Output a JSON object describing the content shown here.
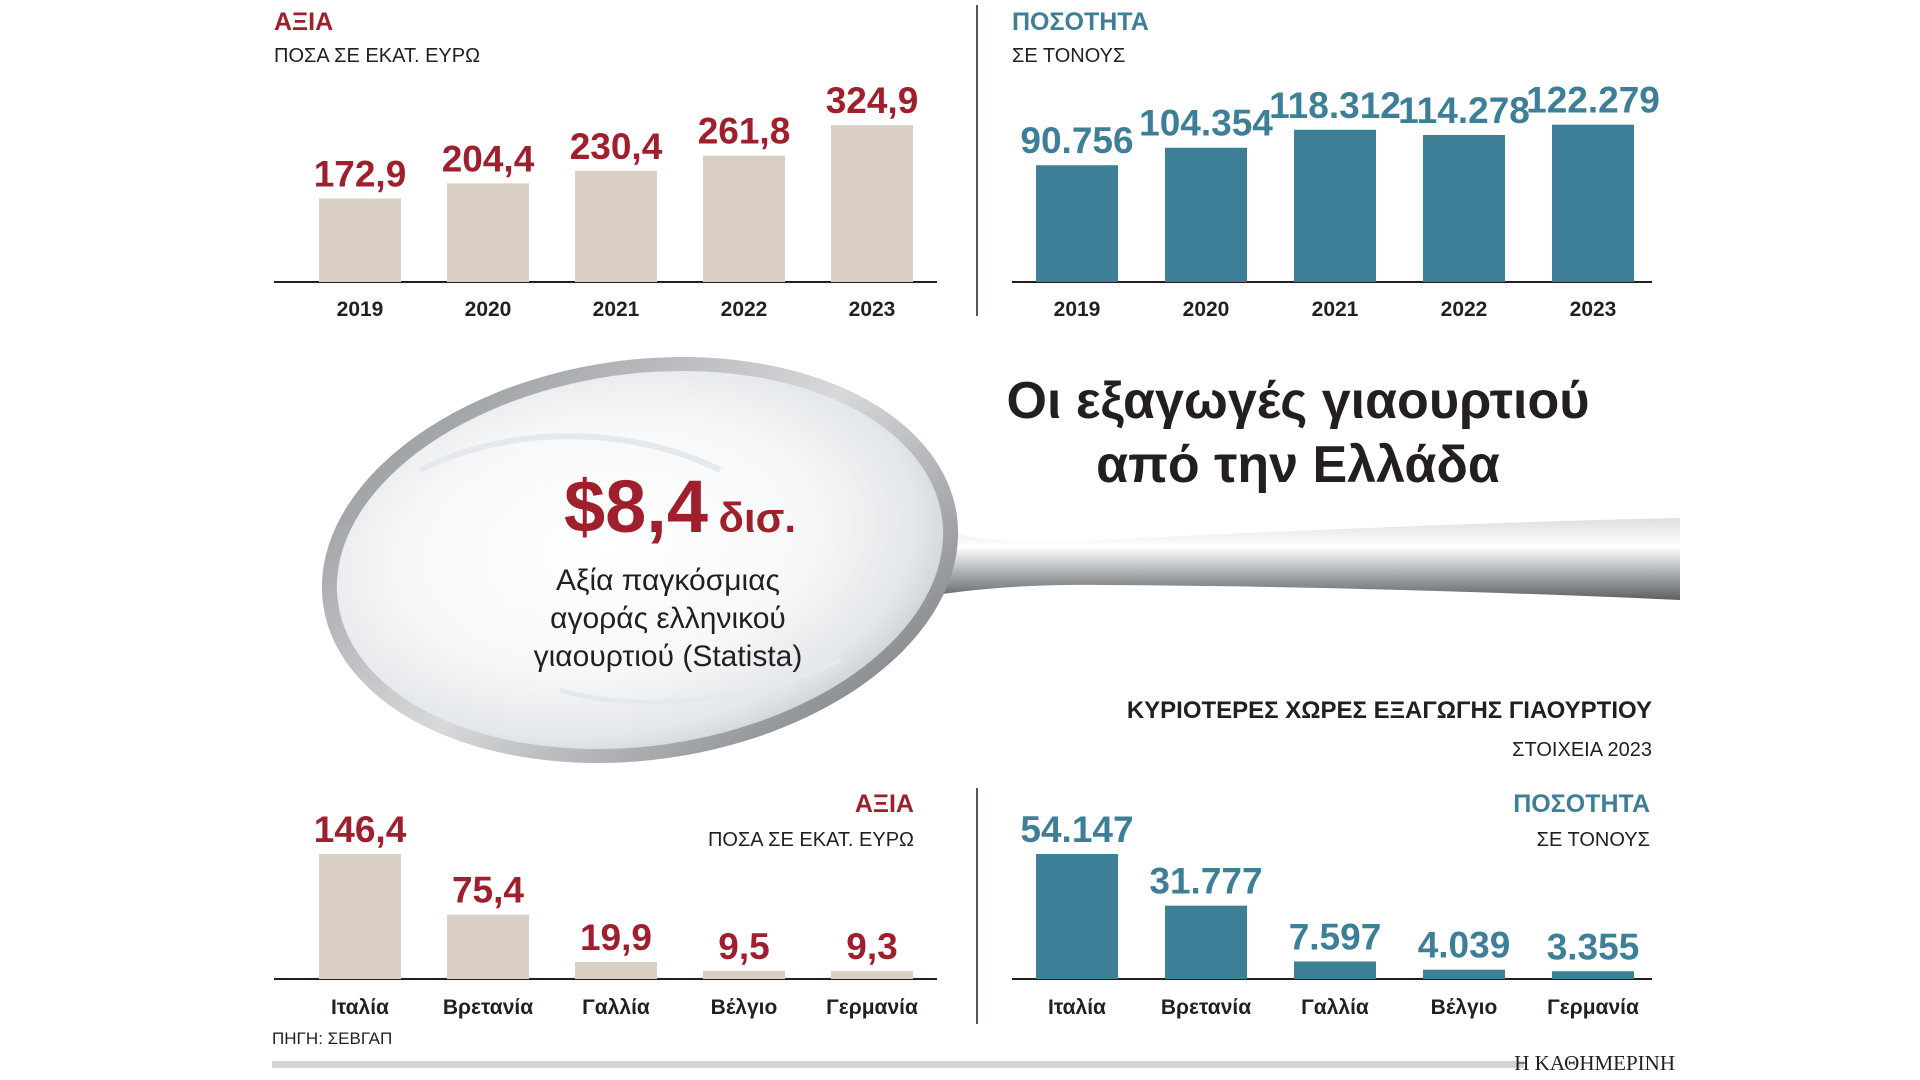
{
  "colors": {
    "value_bar": "#d9cfc4",
    "value_text": "#a01f2d",
    "volume_bar": "#3e7f98",
    "volume_text": "#3e7f98",
    "axis": "#231f20",
    "text": "#231f20",
    "divider": "#231f20",
    "footer_bar": "#d1d3d4"
  },
  "headline": {
    "line1": "Οι εξαγωγές γιαουρτιού",
    "line2": "από την Ελλάδα"
  },
  "spoon": {
    "big_number": "$8,4",
    "big_unit": "δισ.",
    "caption_lines": [
      "Αξία παγκόσμιας",
      "αγοράς ελληνικού",
      "γιαουρτιού (Statista)"
    ]
  },
  "countries_section": {
    "title": "ΚΥΡΙΟΤΕΡΕΣ ΧΩΡΕΣ ΕΞΑΓΩΓΗΣ ΓΙΑΟΥΡΤΙΟΥ",
    "subtitle": "ΣΤΟΙΧΕΙΑ 2023"
  },
  "footer": {
    "source": "ΠΗΓΗ: ΣΕΒΓΑΠ",
    "publisher": "Η ΚΑΘΗΜΕΡΙΝΗ"
  },
  "chart_data": [
    {
      "id": "value_by_year",
      "type": "bar",
      "title": "ΑΞΙΑ",
      "subtitle": "ΠΟΣΑ ΣΕ ΕΚΑΤ. ΕΥΡΩ",
      "categories": [
        "2019",
        "2020",
        "2021",
        "2022",
        "2023"
      ],
      "values": [
        172.9,
        204.4,
        230.4,
        261.8,
        324.9
      ],
      "labels": [
        "172,9",
        "204,4",
        "230,4",
        "261,8",
        "324,9"
      ],
      "ylim": [
        0,
        400
      ],
      "color": "#d9cfc4",
      "label_color": "#a01f2d"
    },
    {
      "id": "volume_by_year",
      "type": "bar",
      "title": "ΠΟΣΟΤΗΤΑ",
      "subtitle": "ΣΕ ΤΟΝΟΥΣ",
      "categories": [
        "2019",
        "2020",
        "2021",
        "2022",
        "2023"
      ],
      "values": [
        90756,
        104354,
        118312,
        114278,
        122279
      ],
      "labels": [
        "90.756",
        "104.354",
        "118.312",
        "114.278",
        "122.279"
      ],
      "ylim": [
        0,
        150000
      ],
      "color": "#3e7f98",
      "label_color": "#3e7f98"
    },
    {
      "id": "value_by_country",
      "type": "bar",
      "title": "ΑΞΙΑ",
      "subtitle": "ΠΟΣΑ ΣΕ ΕΚΑΤ. ΕΥΡΩ",
      "categories": [
        "Ιταλία",
        "Βρετανία",
        "Γαλλία",
        "Βέλγιο",
        "Γερμανία"
      ],
      "values": [
        146.4,
        75.4,
        19.9,
        9.5,
        9.3
      ],
      "labels": [
        "146,4",
        "75,4",
        "19,9",
        "9,5",
        "9,3"
      ],
      "ylim": [
        0,
        146.4
      ],
      "color": "#d9cfc4",
      "label_color": "#a01f2d"
    },
    {
      "id": "volume_by_country",
      "type": "bar",
      "title": "ΠΟΣΟΤΗΤΑ",
      "subtitle": "ΣΕ ΤΟΝΟΥΣ",
      "categories": [
        "Ιταλία",
        "Βρετανία",
        "Γαλλία",
        "Βέλγιο",
        "Γερμανία"
      ],
      "values": [
        54147,
        31777,
        7597,
        4039,
        3355
      ],
      "labels": [
        "54.147",
        "31.777",
        "7.597",
        "4.039",
        "3.355"
      ],
      "ylim": [
        0,
        54147
      ],
      "color": "#3e7f98",
      "label_color": "#3e7f98"
    }
  ]
}
